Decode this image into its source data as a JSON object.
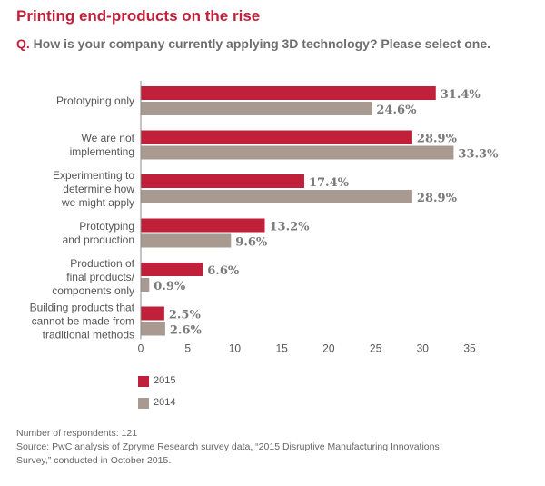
{
  "header": {
    "title": "Printing end-products on the rise",
    "question_prefix": "Q.",
    "question_text": "How is your company currently applying 3D technology? Please select one."
  },
  "colors": {
    "series_2015": "#c0203a",
    "series_2014": "#a89a90",
    "axis": "#888888"
  },
  "legend": {
    "items": [
      {
        "label": "2015"
      },
      {
        "label": "2014"
      }
    ]
  },
  "footnote": {
    "respondents": "Number of respondents: 121",
    "source_line1": "Source: PwC analysis of Zpryme Research survey data, “2015 Disruptive Manufacturing Innovations",
    "source_line2": "Survey,” conducted in October 2015."
  },
  "chart_data": {
    "type": "bar",
    "orientation": "horizontal",
    "categories": [
      [
        "Prototyping only"
      ],
      [
        "We are not",
        "implementing"
      ],
      [
        "Experimenting to",
        "determine how",
        "we might apply"
      ],
      [
        "Prototyping",
        "and production"
      ],
      [
        "Production of",
        "final products/",
        "components only"
      ],
      [
        "Building products that",
        "cannot be made from",
        "traditional methods"
      ]
    ],
    "series": [
      {
        "name": "2015",
        "values": [
          31.4,
          28.9,
          17.4,
          13.2,
          6.6,
          2.5
        ],
        "labels": [
          "31.4%",
          "28.9%",
          "17.4%",
          "13.2%",
          "6.6%",
          "2.5%"
        ]
      },
      {
        "name": "2014",
        "values": [
          24.6,
          33.3,
          28.9,
          9.6,
          0.9,
          2.6
        ],
        "labels": [
          "24.6%",
          "33.3%",
          "28.9%",
          "9.6%",
          "0.9%",
          "2.6%"
        ]
      }
    ],
    "xlim": [
      0,
      35
    ],
    "xticks": [
      0,
      5,
      10,
      15,
      20,
      25,
      30,
      35
    ],
    "grid": false,
    "legend_position": "bottom-left"
  }
}
